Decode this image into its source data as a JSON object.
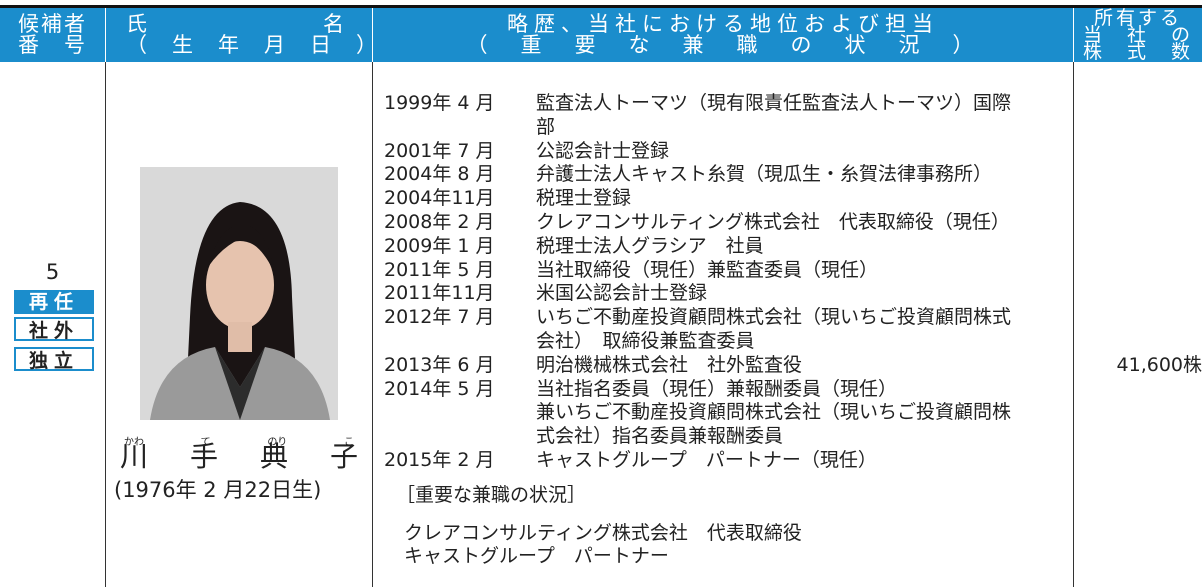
{
  "header": {
    "candidate_no": [
      "候補者",
      "番　号"
    ],
    "name": [
      "氏",
      "名",
      "（　生　年　月　日　）"
    ],
    "career": [
      "略歴、当社における地位および担当",
      "（　重　要　な　兼　職　の　状　況　）"
    ],
    "shares": [
      "所有する",
      "当　社　の",
      "株　式　数"
    ]
  },
  "candidate": {
    "number": "5",
    "badges": [
      "再任",
      "社外",
      "独立"
    ],
    "ruby": [
      "かわ",
      "て",
      "のり",
      "こ"
    ],
    "name": [
      "川",
      "手",
      "典",
      "子"
    ],
    "birth": "(1976年 2 月22日生)",
    "career": [
      {
        "date": "1999年 4 月",
        "lines": [
          "監査法人トーマツ（現有限責任監査法人トーマツ）国際",
          "部"
        ]
      },
      {
        "date": "2001年 7 月",
        "lines": [
          "公認会計士登録"
        ]
      },
      {
        "date": "2004年 8 月",
        "lines": [
          "弁護士法人キャスト糸賀（現瓜生・糸賀法律事務所）"
        ]
      },
      {
        "date": "2004年11月",
        "lines": [
          "税理士登録"
        ]
      },
      {
        "date": "2008年 2 月",
        "lines": [
          "クレアコンサルティング株式会社　代表取締役（現任）"
        ]
      },
      {
        "date": "2009年 1 月",
        "lines": [
          "税理士法人グラシア　社員"
        ]
      },
      {
        "date": "2011年 5 月",
        "lines": [
          "当社取締役（現任）兼監査委員（現任）"
        ]
      },
      {
        "date": "2011年11月",
        "lines": [
          "米国公認会計士登録"
        ]
      },
      {
        "date": "2012年 7 月",
        "lines": [
          "いちご不動産投資顧問株式会社（現いちご投資顧問株式",
          "会社）　取締役兼監査委員"
        ]
      },
      {
        "date": "2013年 6 月",
        "lines": [
          "明治機械株式会社　社外監査役"
        ]
      },
      {
        "date": "2014年 5 月",
        "lines": [
          "当社指名委員（現任）兼報酬委員（現任）",
          "兼いちご不動産投資顧問株式会社（現いちご投資顧問株",
          "式会社）指名委員兼報酬委員"
        ]
      },
      {
        "date": "2015年 2 月",
        "lines": [
          "キャストグループ　パートナー（現任）"
        ]
      }
    ],
    "concurrent_title": "［重要な兼職の状況］",
    "concurrent": [
      "クレアコンサルティング株式会社　代表取締役",
      "キャストグループ　パートナー"
    ],
    "shares": "41,600株"
  }
}
